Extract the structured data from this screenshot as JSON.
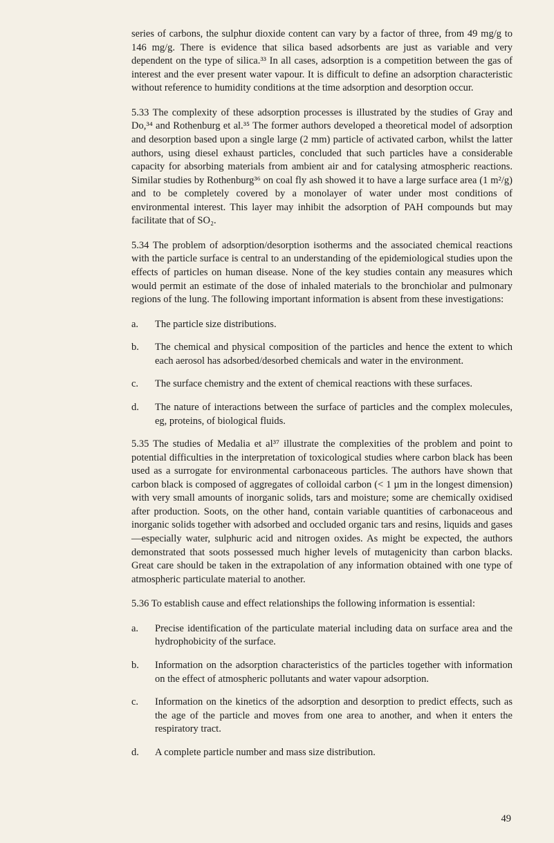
{
  "paragraphs": {
    "p1": "series of carbons, the sulphur dioxide content can vary by a factor of three, from 49 mg/g to 146 mg/g. There is evidence that silica based adsorbents are just as variable and very dependent on the type of silica.³³ In all cases, adsorption is a competition between the gas of interest and the ever present water vapour. It is difficult to define an adsorption characteristic without reference to humidity conditions at the time adsorption and desorption occur.",
    "p2": "5.33   The complexity of these adsorption processes is illustrated by the studies of Gray and Do,³⁴ and Rothenburg et al.³⁵ The former authors developed a theoretical model of adsorption and desorption based upon a single large (2 mm) particle of activated carbon, whilst the latter authors, using diesel exhaust particles, concluded that such particles have a considerable capacity for absorbing materials from ambient air and for catalysing atmospheric reactions. Similar studies by Rothenburg³⁶ on coal fly ash showed it to have a large surface area (1 m²/g) and to be completely covered by a monolayer of water under most conditions of environmental interest. This layer may inhibit the adsorption of PAH compounds but may facilitate that of SO₂.",
    "p3": "5.34   The problem of adsorption/desorption isotherms and the associated chemical reactions with the particle surface is central to an understanding of the epidemiological studies upon the effects of particles on human disease. None of the key studies contain any measures which would permit an estimate of the dose of inhaled materials to the bronchiolar and pulmonary regions of the lung. The following important information is absent from these investigations:",
    "p4": "5.35   The studies of Medalia et al³⁷ illustrate the complexities of the problem and point to potential difficulties in the interpretation of toxicological studies where carbon black has been used as a surrogate for environmental carbonaceous particles. The authors have shown that carbon black is composed of aggregates of colloidal carbon (< 1 µm in the longest dimension) with very small amounts of inorganic solids, tars and moisture; some are chemically oxidised after production. Soots, on the other hand, contain variable quantities of carbonaceous and inorganic solids together with adsorbed and occluded organic tars and resins, liquids and gases—especially water, sulphuric acid and nitrogen oxides. As might be expected, the authors demonstrated that soots possessed much higher levels of mutagenicity than carbon blacks. Great care should be taken in the extrapolation of any information obtained with one type of atmospheric particulate material to another.",
    "p5": "5.36   To establish cause and effect relationships the following information is essential:"
  },
  "list1": [
    {
      "marker": "a.",
      "text": "The particle size distributions."
    },
    {
      "marker": "b.",
      "text": "The chemical and physical composition of the particles and hence the extent to which each aerosol has adsorbed/desorbed chemicals and water in the environment."
    },
    {
      "marker": "c.",
      "text": "The surface chemistry and the extent of chemical reactions with these surfaces."
    },
    {
      "marker": "d.",
      "text": "The nature of interactions between the surface of particles and the complex molecules, eg, proteins, of biological fluids."
    }
  ],
  "list2": [
    {
      "marker": "a.",
      "text": "Precise identification of the particulate material including data on surface area and the hydrophobicity of the surface."
    },
    {
      "marker": "b.",
      "text": "Information on the adsorption characteristics of the particles together with information on the effect of atmospheric pollutants and water vapour adsorption."
    },
    {
      "marker": "c.",
      "text": "Information on the kinetics of the adsorption and desorption to predict effects, such as the age of the particle and moves from one area to another, and when it enters the respiratory tract."
    },
    {
      "marker": "d.",
      "text": "A complete particle number and mass size distribution."
    }
  ],
  "pageNumber": "49"
}
